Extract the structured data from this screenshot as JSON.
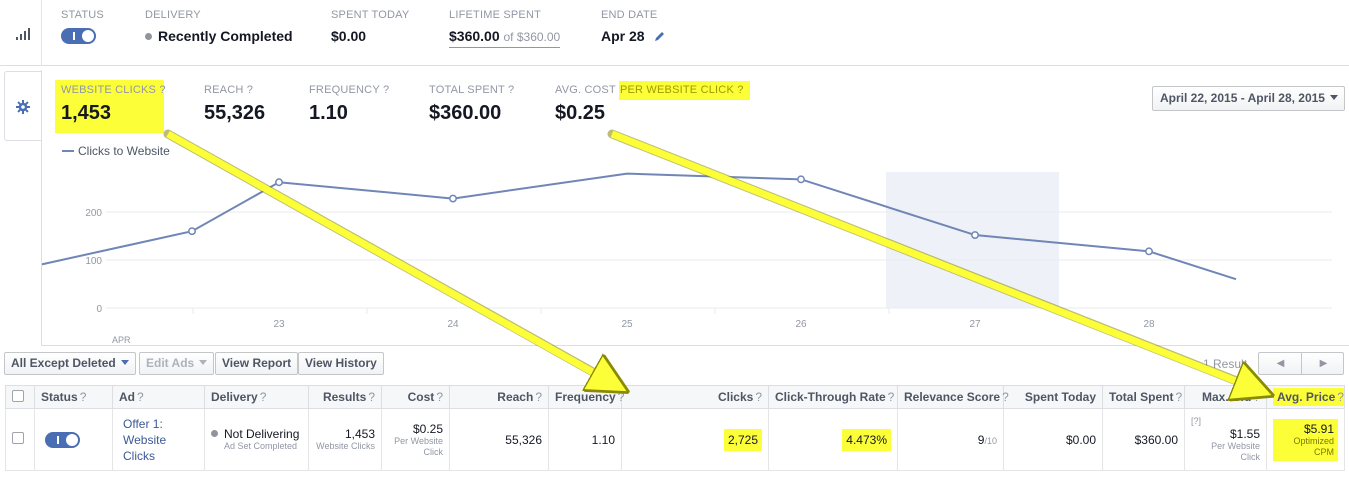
{
  "status_bar": {
    "status_label": "STATUS",
    "toggle_text": "I",
    "delivery_label": "DELIVERY",
    "delivery_value": "Recently Completed",
    "spent_today_label": "SPENT TODAY",
    "spent_today_value": "$0.00",
    "lifetime_label": "LIFETIME SPENT",
    "lifetime_value": "$360.00",
    "lifetime_of": "of $360.00",
    "end_date_label": "END DATE",
    "end_date_value": "Apr 28"
  },
  "metrics": [
    {
      "label": "WEBSITE CLICKS",
      "help": "?",
      "value": "1,453"
    },
    {
      "label": "REACH",
      "help": "?",
      "value": "55,326"
    },
    {
      "label": "FREQUENCY",
      "help": "?",
      "value": "1.10"
    },
    {
      "label": "TOTAL SPENT",
      "help": "?",
      "value": "$360.00"
    },
    {
      "label_a": "AVG. COST",
      "label_b": "PER WEBSITE CLICK",
      "help": "?",
      "value": "$0.25"
    }
  ],
  "date_range": "April 22, 2015 - April 28, 2015",
  "chart_data": {
    "type": "line",
    "series": [
      {
        "name": "Clicks to Website",
        "values": [
          80,
          160,
          262,
          228,
          280,
          268,
          152,
          118,
          60
        ]
      }
    ],
    "x": [
      21.5,
      22.5,
      23,
      24,
      25,
      26,
      27,
      28,
      28.5
    ],
    "x_tick_labels": [
      "23",
      "24",
      "25",
      "26",
      "27",
      "28"
    ],
    "x_first_label": "APR",
    "y_tick_labels": [
      "0",
      "100",
      "200"
    ],
    "ylim": [
      0,
      300
    ],
    "highlight_band_day": 27,
    "color": "#6f86b6"
  },
  "toolbar": {
    "filter": "All Except Deleted",
    "edit_ads": "Edit Ads",
    "view_report": "View Report",
    "view_history": "View History",
    "results": "1 Result",
    "prev": "◀",
    "next": "▶"
  },
  "table": {
    "headers": [
      "Status",
      "Ad",
      "Delivery",
      "Results",
      "Cost",
      "Reach",
      "Frequency",
      "Clicks",
      "Click-Through Rate",
      "Relevance Score",
      "Spent Today",
      "Total Spent",
      "Max. Bid",
      "Avg. Price"
    ],
    "row": {
      "ad_name": "Offer 1: Website Clicks",
      "delivery": "Not Delivering",
      "delivery_sub": "Ad Set Completed",
      "results": "1,453",
      "results_sub": "Website Clicks",
      "cost": "$0.25",
      "cost_sub": "Per Website Click",
      "reach": "55,326",
      "frequency": "1.10",
      "clicks": "2,725",
      "ctr": "4.473%",
      "relevance": "9",
      "relevance_of": "/10",
      "spent_today": "$0.00",
      "total_spent": "$360.00",
      "max_bid_help": "[?]",
      "max_bid": "$1.55",
      "max_bid_sub": "Per Website Click",
      "avg_price": "$5.91",
      "avg_price_sub": "Optimized CPM"
    }
  },
  "colors": {
    "highlight": "#fcff38",
    "accent": "#4a6eb3",
    "line": "#6f86b6"
  }
}
